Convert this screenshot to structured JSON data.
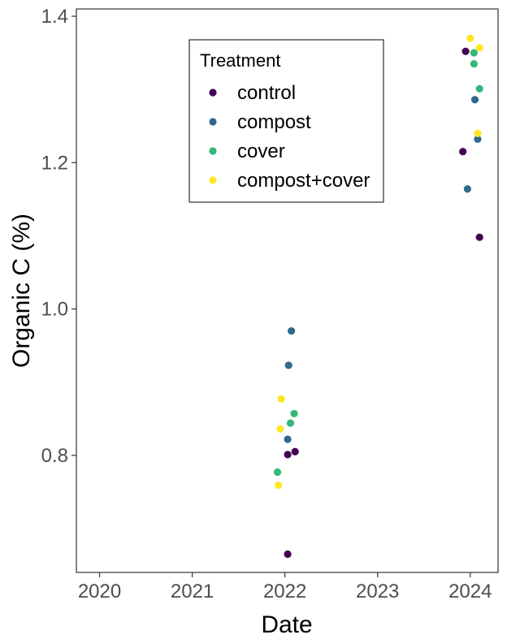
{
  "chart_data": {
    "type": "scatter",
    "xlabel": "Date",
    "ylabel": "Organic C (%)",
    "xlim": [
      2019.75,
      2024.3
    ],
    "ylim": [
      0.64,
      1.41
    ],
    "x_ticks": [
      2020,
      2021,
      2022,
      2023,
      2024
    ],
    "x_tick_labels": [
      "2020",
      "2021",
      "2022",
      "2023",
      "2024"
    ],
    "y_ticks": [
      0.8,
      1.0,
      1.2,
      1.4
    ],
    "y_tick_labels": [
      "0.8",
      "1.0",
      "1.2",
      "1.4"
    ],
    "grid": false,
    "legend": {
      "title": "Treatment",
      "placement": "top-center-inside"
    },
    "series": [
      {
        "name": "control",
        "color": "#440154",
        "points": [
          [
            2022.03,
            0.665
          ],
          [
            2022.03,
            0.801
          ],
          [
            2022.11,
            0.805
          ],
          [
            2023.92,
            1.215
          ],
          [
            2023.95,
            1.352
          ],
          [
            2024.1,
            1.098
          ]
        ]
      },
      {
        "name": "compost",
        "color": "#31688e",
        "points": [
          [
            2022.03,
            0.822
          ],
          [
            2022.04,
            0.923
          ],
          [
            2022.07,
            0.97
          ],
          [
            2023.97,
            1.164
          ],
          [
            2024.05,
            1.286
          ],
          [
            2024.08,
            1.232
          ]
        ]
      },
      {
        "name": "cover",
        "color": "#35b779",
        "points": [
          [
            2021.92,
            0.777
          ],
          [
            2022.06,
            0.844
          ],
          [
            2022.1,
            0.857
          ],
          [
            2024.04,
            1.335
          ],
          [
            2024.04,
            1.35
          ],
          [
            2024.1,
            1.301
          ]
        ]
      },
      {
        "name": "compost+cover",
        "color": "#fde725",
        "points": [
          [
            2021.93,
            0.759
          ],
          [
            2021.95,
            0.836
          ],
          [
            2021.96,
            0.877
          ],
          [
            2024.0,
            1.37
          ],
          [
            2024.08,
            1.24
          ],
          [
            2024.1,
            1.357
          ]
        ]
      }
    ]
  }
}
